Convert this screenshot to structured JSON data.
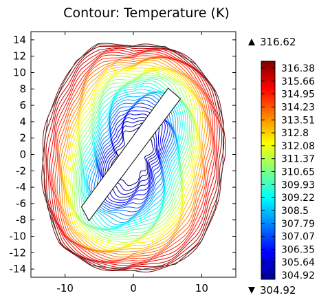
{
  "chart_data": {
    "type": "contour",
    "title": "Contour: Temperature (K)",
    "xlabel": "",
    "ylabel": "",
    "xlim": [
      -15,
      15
    ],
    "ylim": [
      -15,
      15
    ],
    "x_ticks": [
      -10,
      0,
      10
    ],
    "y_ticks": [
      14,
      12,
      10,
      8,
      6,
      4,
      2,
      0,
      -2,
      -4,
      -6,
      -8,
      -10,
      -12,
      -14
    ],
    "domain": {
      "shape": "near-circular polygon",
      "boundary": [
        [
          -5.2,
          13.4
        ],
        [
          0,
          13.2
        ],
        [
          4.6,
          13.2
        ],
        [
          9.2,
          11.0
        ],
        [
          11.8,
          8.0
        ],
        [
          13.2,
          4.0
        ],
        [
          13.1,
          -1.5
        ],
        [
          12.0,
          -6.5
        ],
        [
          10.0,
          -10.6
        ],
        [
          6.2,
          -13.4
        ],
        [
          0,
          -14.2
        ],
        [
          -6.0,
          -13.6
        ],
        [
          -10.6,
          -11.0
        ],
        [
          -12.6,
          -6.4
        ],
        [
          -13.3,
          -0.6
        ],
        [
          -12.5,
          4.6
        ],
        [
          -10.2,
          8.8
        ],
        [
          -8.4,
          11.4
        ]
      ]
    },
    "obstacle": {
      "shape": "rotated rectangle",
      "corners": [
        [
          5.1,
          8.1
        ],
        [
          6.9,
          6.8
        ],
        [
          -6.5,
          -8.1
        ],
        [
          -7.6,
          -6.4
        ]
      ]
    },
    "field": {
      "min": 304.92,
      "max": 316.62,
      "cold_cores": [
        [
          -1.5,
          3.2
        ],
        [
          1.5,
          -4.0
        ]
      ],
      "levels": 40
    },
    "colorbar": {
      "max_label": "316.62",
      "min_label": "304.92",
      "ticks": [
        "316.38",
        "315.66",
        "314.95",
        "314.23",
        "313.51",
        "312.8",
        "312.08",
        "311.37",
        "310.65",
        "309.93",
        "309.22",
        "308.5",
        "307.79",
        "307.07",
        "306.35",
        "305.64",
        "304.92"
      ],
      "colormap": "jet",
      "colors": [
        "#00008f",
        "#0000ff",
        "#0080ff",
        "#00ffff",
        "#80ff80",
        "#ffff00",
        "#ff8000",
        "#ff0000",
        "#800000"
      ]
    }
  }
}
